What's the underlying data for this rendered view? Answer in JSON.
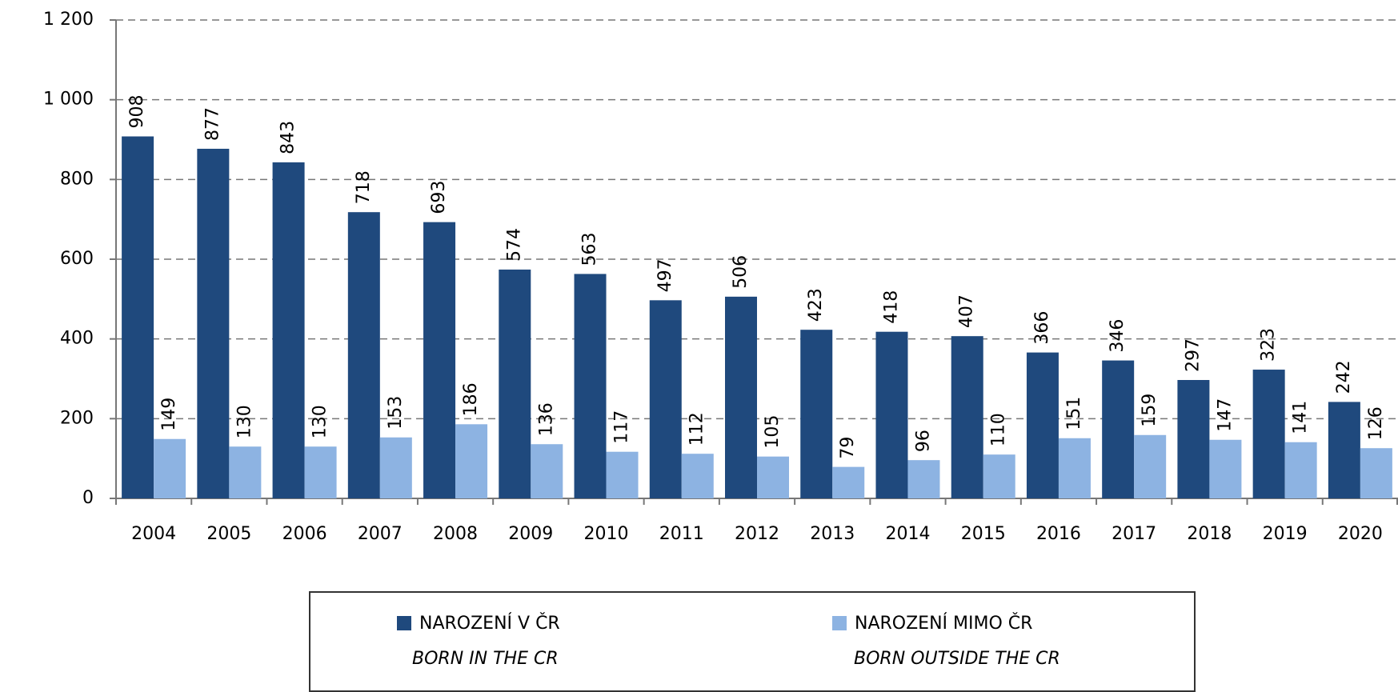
{
  "chart_data": {
    "type": "bar",
    "categories": [
      "2004",
      "2005",
      "2006",
      "2007",
      "2008",
      "2009",
      "2010",
      "2011",
      "2012",
      "2013",
      "2014",
      "2015",
      "2016",
      "2017",
      "2018",
      "2019",
      "2020"
    ],
    "series": [
      {
        "name": "NAROZENÍ V ČR",
        "name_en": "BORN IN THE CR",
        "color": "#1f497d",
        "values": [
          908,
          877,
          843,
          718,
          693,
          574,
          563,
          497,
          506,
          423,
          418,
          407,
          366,
          346,
          297,
          323,
          242
        ]
      },
      {
        "name": "NAROZENÍ MIMO ČR",
        "name_en": "BORN OUTSIDE THE CR",
        "color": "#8db3e2",
        "values": [
          149,
          130,
          130,
          153,
          186,
          136,
          117,
          112,
          105,
          79,
          96,
          110,
          151,
          159,
          147,
          141,
          126
        ]
      }
    ],
    "ylim": [
      0,
      1200
    ],
    "yticks": [
      0,
      200,
      400,
      600,
      800,
      {
        "value": 1000,
        "label": "1 000"
      },
      {
        "value": 1200,
        "label": "1 200"
      }
    ],
    "grid": true
  }
}
